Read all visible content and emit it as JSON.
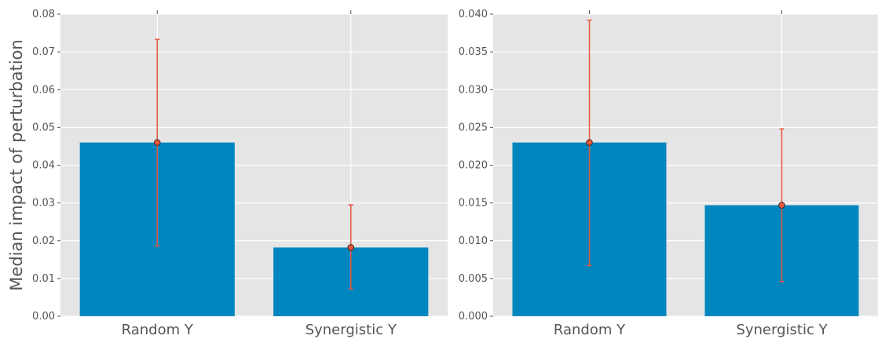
{
  "chart_data": [
    {
      "type": "bar",
      "title": "",
      "xlabel": "",
      "ylabel": "Median impact of perturbation",
      "categories": [
        "Random Y",
        "Synergistic Y"
      ],
      "values": [
        0.046,
        0.0182
      ],
      "error_low": [
        0.0186,
        0.0072
      ],
      "error_high": [
        0.0733,
        0.0295
      ],
      "ylim": [
        0,
        0.08
      ],
      "yticks": [
        0,
        0.01,
        0.02,
        0.03,
        0.04,
        0.05,
        0.06,
        0.07,
        0.08
      ],
      "ytick_labels": [
        "0.00",
        "0.01",
        "0.02",
        "0.03",
        "0.04",
        "0.05",
        "0.06",
        "0.07",
        "0.08"
      ],
      "grid": true,
      "bar_color": "#0086BF",
      "error_color": "#E8573F",
      "background_color": "#E5E5E5"
    },
    {
      "type": "bar",
      "title": "",
      "xlabel": "",
      "ylabel": "",
      "categories": [
        "Random Y",
        "Synergistic Y"
      ],
      "values": [
        0.023,
        0.0147
      ],
      "error_low": [
        0.0067,
        0.0046
      ],
      "error_high": [
        0.0392,
        0.0248
      ],
      "ylim": [
        0,
        0.04
      ],
      "yticks": [
        0,
        0.005,
        0.01,
        0.015,
        0.02,
        0.025,
        0.03,
        0.035,
        0.04
      ],
      "ytick_labels": [
        "0.000",
        "0.005",
        "0.010",
        "0.015",
        "0.020",
        "0.025",
        "0.030",
        "0.035",
        "0.040"
      ],
      "grid": true,
      "bar_color": "#0086BF",
      "error_color": "#E8573F",
      "background_color": "#E5E5E5"
    }
  ]
}
